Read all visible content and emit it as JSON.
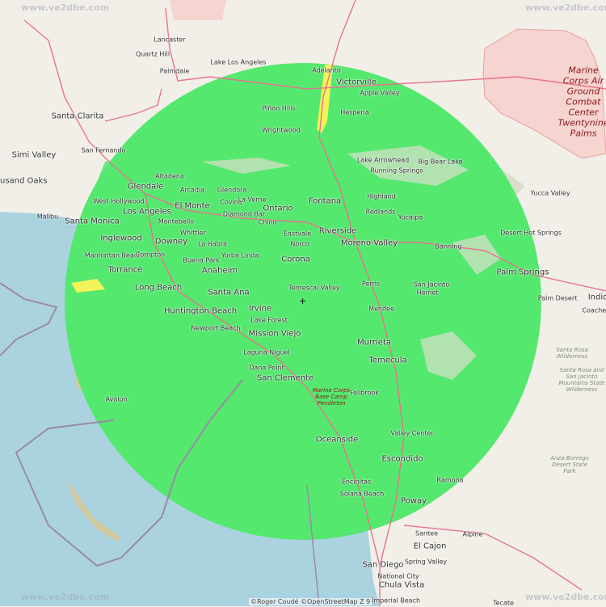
{
  "map": {
    "zoom_label": "Z 9",
    "attribution": "©Roger Coudé  ©OpenStreetMap  Z 9",
    "watermark": "www.ve2dbe.com",
    "colors": {
      "land": "#f2efe9",
      "ocean": "#aad3df",
      "coverage": "#55e86e",
      "coverage_weak": "#f3f35a",
      "highway": "#e8738f",
      "park": "#d4dcc4",
      "military": "#f4c4c4"
    },
    "transmitter_marker": "+",
    "labels": {
      "lancaster": "Lancaster",
      "quartz_hill": "Quartz Hill",
      "palmdale": "Palmdale",
      "lake_los_angeles": "Lake Los Angeles",
      "adelanto": "Adelanto",
      "victorville": "Victorville",
      "apple_valley": "Apple Valley",
      "hesperia": "Hesperia",
      "pinon_hills": "Piñon Hills",
      "wrightwood": "Wrightwood",
      "santa_clarita": "Santa Clarita",
      "san_fernando": "San Fernando",
      "simi_valley": "Simi Valley",
      "thousand_oaks": "Thousand Oaks",
      "malibu": "Malibu",
      "santa_monica": "Santa Monica",
      "altadena": "Altadena",
      "glendale": "Glendale",
      "west_hollywood": "West Hollywood",
      "los_angeles": "Los Angeles",
      "arcadia": "Arcadia",
      "glendora": "Glendora",
      "el_monte": "El Monte",
      "covina": "Covina",
      "la_verne": "La Verne",
      "ontario": "Ontario",
      "diamond_bar": "Diamond Bar",
      "chino": "Chino",
      "montebello": "Montebello",
      "whittier": "Whittier",
      "inglewood": "Inglewood",
      "downey": "Downey",
      "la_habra": "La Habra",
      "eastvale": "Eastvale",
      "norco": "Norco",
      "manhattan_beach": "Manhattan Beach",
      "compton": "Compton",
      "torrance": "Torrance",
      "buena_park": "Buena Park",
      "yorba_linda": "Yorba Linda",
      "corona": "Corona",
      "long_beach": "Long Beach",
      "anaheim": "Anaheim",
      "santa_ana": "Santa Ana",
      "huntington_beach": "Huntington Beach",
      "irvine": "Irvine",
      "newport_beach": "Newport Beach",
      "lake_forest": "Lake Forest",
      "mission_viejo": "Mission Viejo",
      "laguna_niguel": "Laguna Niguel",
      "dana_point": "Dana Point",
      "san_clemente": "San Clemente",
      "avalon": "Avalon",
      "temescal_valley": "Temescal Valley",
      "fontana": "Fontana",
      "highland": "Highland",
      "redlands": "Redlands",
      "yucaipa": "Yucaipa",
      "riverside": "Riverside",
      "moreno_valley": "Moreno Valley",
      "banning": "Banning",
      "perris": "Perris",
      "san_jacinto": "San Jacinto",
      "hemet": "Hemet",
      "menifee": "Menifee",
      "murrieta": "Murrieta",
      "temecula": "Temecula",
      "fallbrook": "Fallbrook",
      "oceanside": "Oceanside",
      "valley_center": "Valley Center",
      "escondido": "Escondido",
      "ramona": "Ramona",
      "encinitas": "Encinitas",
      "solana_beach": "Solana Beach",
      "poway": "Poway",
      "santee": "Santee",
      "alpine": "Alpine",
      "el_cajon": "El Cajon",
      "spring_valley": "Spring Valley",
      "san_diego": "San Diego",
      "national_city": "National City",
      "chula_vista": "Chula Vista",
      "imperial_beach": "Imperial Beach",
      "tecate": "Tecate",
      "lake_arrowhead": "Lake Arrowhead",
      "big_bear_lake": "Big Bear Lake",
      "running_springs": "Running Springs",
      "yucca_valley": "Yucca Valley",
      "desert_hot_springs": "Desert Hot Springs",
      "palm_springs": "Palm Springs",
      "palm_desert": "Palm Desert",
      "indio": "Indio",
      "coachella": "Coachella",
      "mcagcc": "Marine Corps Air Ground Combat Center Twentynine Palms",
      "camp_pendleton": "Marine Corps Base Camp Pendleton",
      "santa_rosa_wilderness": "Santa Rosa Wilderness",
      "anza_borrego": "Anza-Borrego Desert State Park",
      "santa_rosa_san_jacinto": "Santa Rosa and San Jacinto Mountains State Wilderness"
    }
  }
}
